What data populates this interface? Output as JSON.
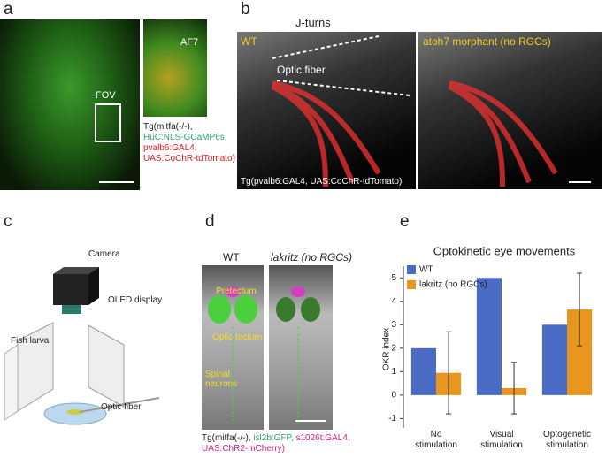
{
  "panels": {
    "a": {
      "letter": "a",
      "inset_label": "AF7",
      "fov_label": "FOV",
      "caption": [
        {
          "text": "Tg(mitfa(-/-),",
          "color": "#222222"
        },
        {
          "text": "HuC:NLS-GCaMP6s,",
          "color": "#2aa36b"
        },
        {
          "text": "pvalb6:GAL4,",
          "color": "#d62020"
        },
        {
          "text": "UAS:CoChR-tdTomato)",
          "color": "#d62020"
        }
      ]
    },
    "b": {
      "letter": "b",
      "title": "J-turns",
      "left_label": "WT",
      "fiber_label": "Optic fiber",
      "right_label": "atoh7 morphant (no RGCs)",
      "caption": "Tg(pvalb6:GAL4, UAS:CoChR-tdTomato)"
    },
    "c": {
      "letter": "c",
      "camera": "Camera",
      "display": "OLED display",
      "larva": "Fish larva",
      "fiber": "Optic fiber"
    },
    "d": {
      "letter": "d",
      "left_label": "WT",
      "right_label": "lakritz (no RGCs)",
      "pretectum": "Pretectum",
      "tectum": "Optic tectum",
      "spinal": "Spinal neurons",
      "caption": [
        {
          "text": "Tg(mitfa(-/-),",
          "color": "#222222"
        },
        {
          "text": "isl2b:GFP,",
          "color": "#2aa36b"
        },
        {
          "text": "s1026t:GAL4,",
          "color": "#d0208a"
        },
        {
          "text": "UAS:ChR2-mCherry)",
          "color": "#d0208a"
        }
      ]
    },
    "e": {
      "letter": "e"
    }
  },
  "chart_data": {
    "type": "bar",
    "title": "Optokinetic eye movements",
    "y_label": "OKR index",
    "categories": [
      "No stimulation",
      "Visual stimulation",
      "Optogenetic stimulation"
    ],
    "series": [
      {
        "name": "WT",
        "color": "#4a6cc4",
        "values": [
          2,
          5,
          3
        ]
      },
      {
        "name": "lakritz (no RGCs)",
        "color": "#e8961e",
        "values": [
          0.95,
          0.3,
          3.65
        ],
        "errors": [
          1.75,
          1.1,
          1.55
        ]
      }
    ],
    "ylim": [
      -1.4,
      5.5
    ],
    "yticks": [
      -1,
      0,
      1,
      2,
      3,
      4,
      5
    ],
    "legend": "top-left",
    "grid": false
  }
}
